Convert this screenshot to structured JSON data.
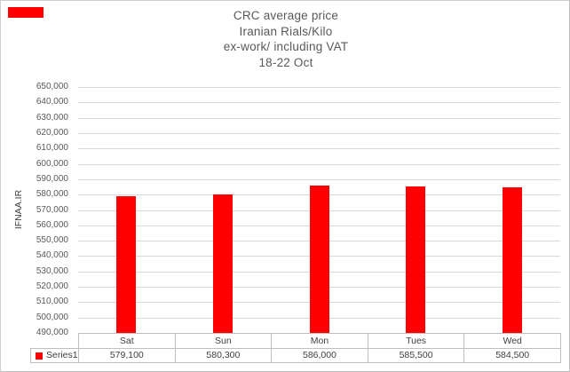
{
  "window": {
    "background": "#FFFFFF",
    "border_color": "#CFCFCF"
  },
  "red_marker": {
    "color": "#FF0000"
  },
  "chart_data": {
    "type": "bar",
    "title": "CRC average price\nIranian Rials/Kilo\nex-work/ including VAT\n18-22 Oct",
    "title_lines": [
      "CRC average price",
      "Iranian Rials/Kilo",
      "ex-work/ including VAT",
      "18-22 Oct"
    ],
    "xlabel": "",
    "ylabel": "IFNAA.IR",
    "categories": [
      "Sat",
      "Sun",
      "Mon",
      "Tues",
      "Wed"
    ],
    "series": [
      {
        "name": "Series1",
        "color": "#FF0000",
        "values": [
          579100,
          580300,
          586000,
          585500,
          584500
        ],
        "value_labels": [
          "579,100",
          "580,300",
          "586,000",
          "585,500",
          "584,500"
        ]
      }
    ],
    "ylim": [
      490000,
      650000
    ],
    "ytick_step": 10000,
    "ytick_labels": [
      "490,000",
      "500,000",
      "510,000",
      "520,000",
      "530,000",
      "540,000",
      "550,000",
      "560,000",
      "570,000",
      "580,000",
      "590,000",
      "600,000",
      "610,000",
      "620,000",
      "630,000",
      "640,000",
      "650,000"
    ],
    "grid": true,
    "gridline_color": "#D9D9D9",
    "axis_text_color": "#595959",
    "table_text_color": "#404040",
    "table_border_color": "#BFBFBF",
    "legend": {
      "label": "Series1",
      "key_color": "#FF0000",
      "position": "bottom-table-left"
    }
  }
}
